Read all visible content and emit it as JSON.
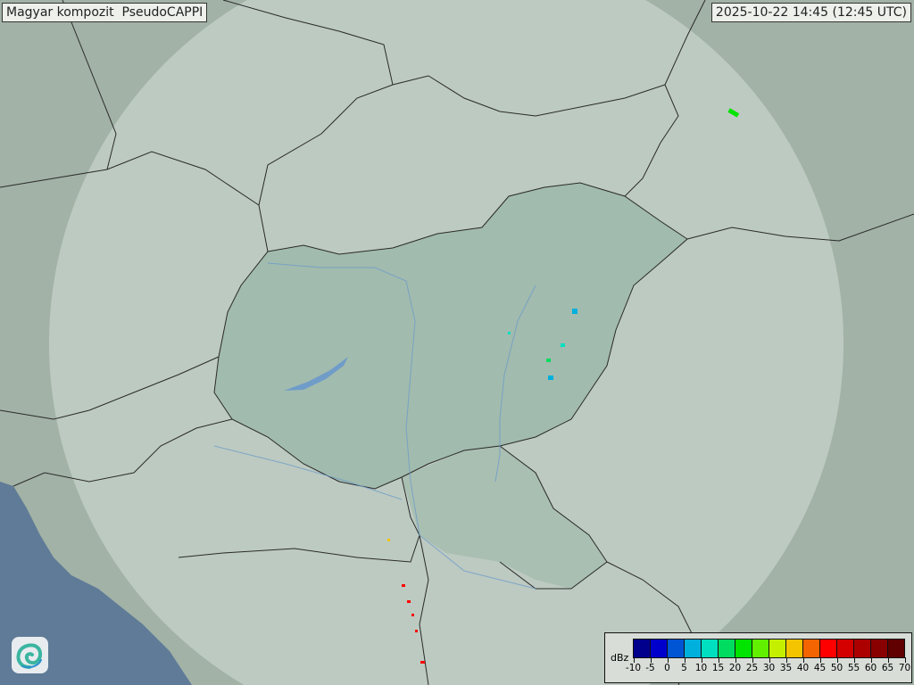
{
  "header": {
    "title": "Magyar kompozit  PseudoCAPPI",
    "timestamp": "2025-10-22 14:45 (12:45 UTC)"
  },
  "legend": {
    "unit": "dBz",
    "ticks": [
      "-10",
      "-5",
      "0",
      "5",
      "10",
      "15",
      "20",
      "25",
      "30",
      "35",
      "40",
      "45",
      "50",
      "55",
      "60",
      "65",
      "70"
    ],
    "colors": [
      "#00008c",
      "#0000cc",
      "#0055d4",
      "#00b0dc",
      "#00e0c0",
      "#00dc60",
      "#00e400",
      "#60f000",
      "#c4f000",
      "#f4c400",
      "#f46400",
      "#ff0000",
      "#d40000",
      "#ac0000",
      "#880000",
      "#600000"
    ]
  },
  "map": {
    "colors": {
      "land": "#9fb0a4",
      "coverage": "#c3d0c8",
      "hungary": "#98b4a6",
      "sea": "#5e7a96",
      "border": "#2a2a2a",
      "river": "#6f9cc8"
    },
    "logo_icon": "omsz-swirl-logo"
  }
}
